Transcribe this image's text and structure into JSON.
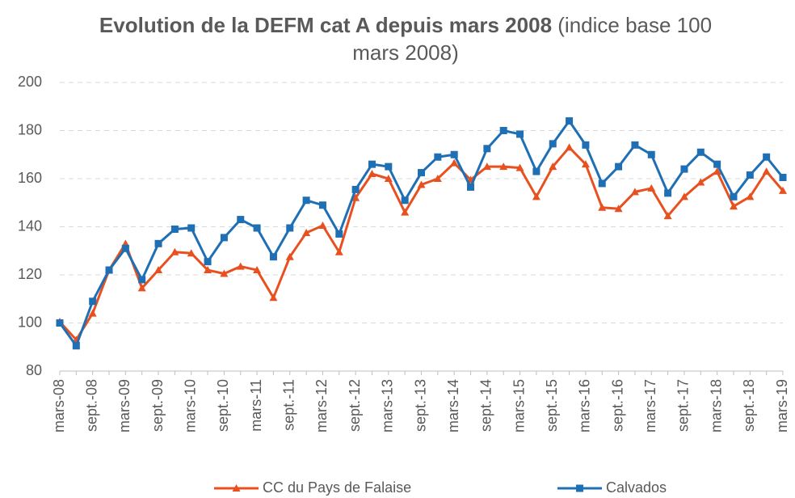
{
  "chart_data": {
    "type": "line",
    "title": "Evolution de la DEFM cat A depuis mars 2008",
    "subtitle": "(indice base 100 mars 2008)",
    "categories": [
      "mars-08",
      null,
      "sept.-08",
      null,
      "mars-09",
      null,
      "sept.-09",
      null,
      "mars-10",
      null,
      "sept.-10",
      null,
      "mars-11",
      null,
      "sept.-11",
      null,
      "mars-12",
      null,
      "sept.-12",
      null,
      "mars-13",
      null,
      "sept.-13",
      null,
      "mars-14",
      null,
      "sept.-14",
      null,
      "mars-15",
      null,
      "sept.-15",
      null,
      "mars-16",
      null,
      "sept.-16",
      null,
      "mars-17",
      null,
      "sept.-17",
      null,
      "mars-18",
      null,
      "sept.-18",
      null,
      "mars-19"
    ],
    "series": [
      {
        "name": "CC du Pays de Falaise",
        "color": "#e8501f",
        "marker": "triangle",
        "values": [
          100.5,
          93,
          104,
          122,
          133,
          114.5,
          122,
          129.5,
          129,
          122,
          120.5,
          123.5,
          122,
          110.5,
          127.5,
          137.5,
          140.5,
          129.5,
          152,
          162,
          160,
          146,
          157.5,
          160,
          166.5,
          159.5,
          165,
          165,
          164.5,
          152.5,
          165,
          173,
          166,
          148,
          147.5,
          154.5,
          156,
          144.5,
          152.5,
          158.5,
          163,
          148.5,
          152.5,
          163,
          155
        ]
      },
      {
        "name": "Calvados",
        "color": "#1f6fb4",
        "marker": "square",
        "values": [
          100,
          90.5,
          109,
          122,
          131,
          118,
          133,
          139,
          139.5,
          125.5,
          135.5,
          143,
          139.5,
          127.5,
          139.5,
          151,
          149,
          137,
          155.5,
          166,
          165,
          151,
          162.5,
          169,
          170,
          156.5,
          172.5,
          180,
          178.5,
          163,
          174.5,
          184,
          174,
          158,
          165,
          174,
          170,
          154,
          164,
          171,
          166,
          152.5,
          161.5,
          169,
          160.5
        ]
      }
    ],
    "ylim": [
      80,
      200
    ],
    "yticks": [
      80,
      100,
      120,
      140,
      160,
      180,
      200
    ],
    "grid": true,
    "legend": "bottom"
  }
}
